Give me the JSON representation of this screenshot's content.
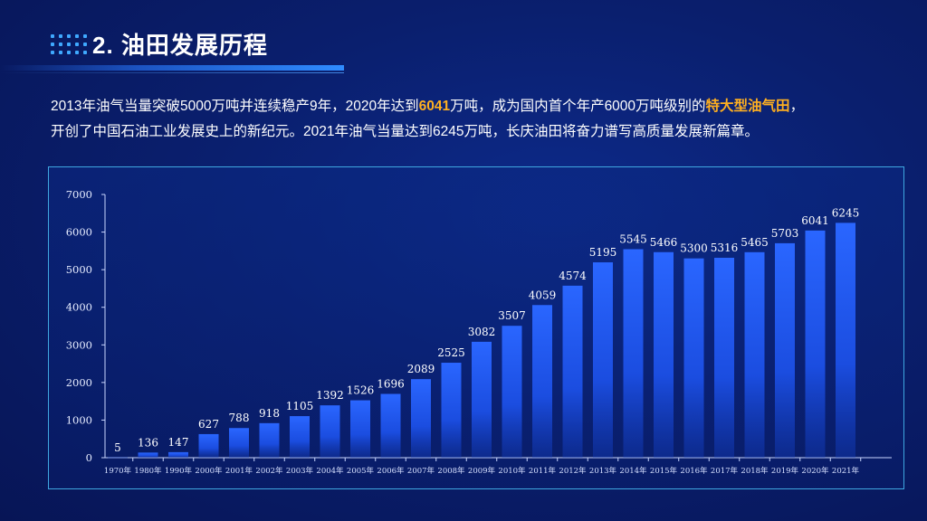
{
  "header": {
    "title": "2. 油田发展历程"
  },
  "paragraph": {
    "line1_a": "2013年油气当量突破5000万吨并连续稳产9年，2020年达到",
    "line1_hl1": "6041",
    "line1_b": "万吨，成为国内首个年产6000万吨级别的",
    "line1_hl2": "特大型油气田",
    "line1_c": "，",
    "line2": "开创了中国石油工业发展史上的新纪元。2021年油气当量达到6245万吨，长庆油田将奋力谱写高质量发展新篇章。"
  },
  "colors": {
    "accent": "#2f8cff",
    "highlight": "#ffb020",
    "bar_top": "#1f5cff",
    "frame": "#3fa7e0"
  },
  "chart_data": {
    "type": "bar",
    "categories": [
      "1970年",
      "1980年",
      "1990年",
      "2000年",
      "2001年",
      "2002年",
      "2003年",
      "2004年",
      "2005年",
      "2006年",
      "2007年",
      "2008年",
      "2009年",
      "2010年",
      "2011年",
      "2012年",
      "2013年",
      "2014年",
      "2015年",
      "2016年",
      "2017年",
      "2018年",
      "2019年",
      "2020年",
      "2021年"
    ],
    "values": [
      5,
      136,
      147,
      627,
      788,
      918,
      1105,
      1392,
      1526,
      1696,
      2089,
      2525,
      3082,
      3507,
      4059,
      4574,
      5195,
      5545,
      5466,
      5300,
      5316,
      5465,
      5703,
      6041,
      6245
    ],
    "labels": [
      "5",
      "136",
      "147",
      "627",
      "788",
      "918",
      "1105",
      "1392",
      "1526",
      "1696",
      "2089",
      "2525",
      "3082",
      "3507",
      "4059",
      "4574",
      "5195",
      "5545",
      "5466",
      "5300",
      "5316",
      "5465",
      "5703",
      "6041",
      "6245"
    ],
    "yticks": [
      "0",
      "1000",
      "2000",
      "3000",
      "4000",
      "5000",
      "6000",
      "7000"
    ],
    "ylim": [
      0,
      7000
    ],
    "title": "",
    "xlabel": "",
    "ylabel": "",
    "grid": false,
    "legend": "none"
  }
}
